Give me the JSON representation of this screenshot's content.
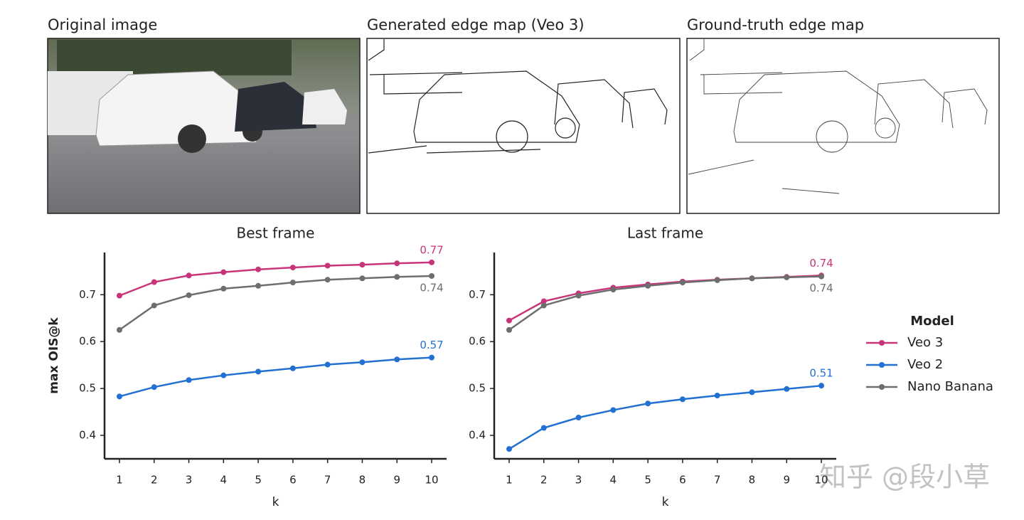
{
  "panels": [
    {
      "title": "Original image"
    },
    {
      "title": "Generated edge map (Veo 3)"
    },
    {
      "title": "Ground-truth edge map"
    }
  ],
  "legend_title": "Model",
  "watermark": "知乎 @段小草",
  "chart_data": [
    {
      "type": "line",
      "title": "Best frame",
      "xlabel": "k",
      "ylabel": "max OIS@k",
      "x": [
        1,
        2,
        3,
        4,
        5,
        6,
        7,
        8,
        9,
        10
      ],
      "xlim": [
        0.57,
        10.43
      ],
      "xticks": [
        1,
        2,
        3,
        4,
        5,
        6,
        7,
        8,
        9,
        10
      ],
      "ylim": [
        0.35,
        0.79
      ],
      "yticks": [
        0.4,
        0.5,
        0.6,
        0.7
      ],
      "grid": false,
      "series": [
        {
          "name": "Veo 3",
          "color": "#c8347a",
          "values": [
            0.698,
            0.727,
            0.741,
            0.748,
            0.754,
            0.758,
            0.762,
            0.764,
            0.767,
            0.769
          ],
          "value_labels": [
            null,
            null,
            null,
            null,
            null,
            null,
            null,
            null,
            null,
            "0.77"
          ]
        },
        {
          "name": "Veo 2",
          "color": "#2270d2",
          "values": [
            0.483,
            0.503,
            0.518,
            0.528,
            0.536,
            0.543,
            0.551,
            0.556,
            0.562,
            0.566
          ],
          "value_labels": [
            null,
            null,
            null,
            null,
            null,
            null,
            null,
            null,
            null,
            "0.57"
          ]
        },
        {
          "name": "Nano Banana",
          "color": "#6e6e6e",
          "values": [
            0.625,
            0.677,
            0.699,
            0.713,
            0.719,
            0.726,
            0.732,
            0.735,
            0.738,
            0.74
          ],
          "value_labels": [
            null,
            null,
            null,
            null,
            null,
            null,
            null,
            null,
            null,
            "0.74"
          ]
        }
      ]
    },
    {
      "type": "line",
      "title": "Last frame",
      "xlabel": "k",
      "x": [
        1,
        2,
        3,
        4,
        5,
        6,
        7,
        8,
        9,
        10
      ],
      "xlim": [
        0.57,
        10.43
      ],
      "xticks": [
        1,
        2,
        3,
        4,
        5,
        6,
        7,
        8,
        9,
        10
      ],
      "ylim": [
        0.35,
        0.79
      ],
      "yticks": [
        0.4,
        0.5,
        0.6,
        0.7
      ],
      "grid": false,
      "series": [
        {
          "color": "#c8347a",
          "values": [
            0.645,
            0.686,
            0.703,
            0.715,
            0.722,
            0.728,
            0.732,
            0.735,
            0.738,
            0.741
          ],
          "value_labels": [
            null,
            null,
            null,
            null,
            null,
            null,
            null,
            null,
            null,
            "0.74"
          ]
        },
        {
          "color": "#2270d2",
          "values": [
            0.371,
            0.416,
            0.438,
            0.454,
            0.468,
            0.477,
            0.485,
            0.492,
            0.499,
            0.506
          ],
          "value_labels": [
            null,
            null,
            null,
            null,
            null,
            null,
            null,
            null,
            null,
            "0.51"
          ]
        },
        {
          "color": "#6e6e6e",
          "values": [
            0.625,
            0.677,
            0.698,
            0.711,
            0.719,
            0.726,
            0.731,
            0.735,
            0.737,
            0.739
          ],
          "value_labels": [
            null,
            null,
            null,
            null,
            null,
            null,
            null,
            null,
            null,
            "0.74"
          ]
        }
      ]
    }
  ]
}
